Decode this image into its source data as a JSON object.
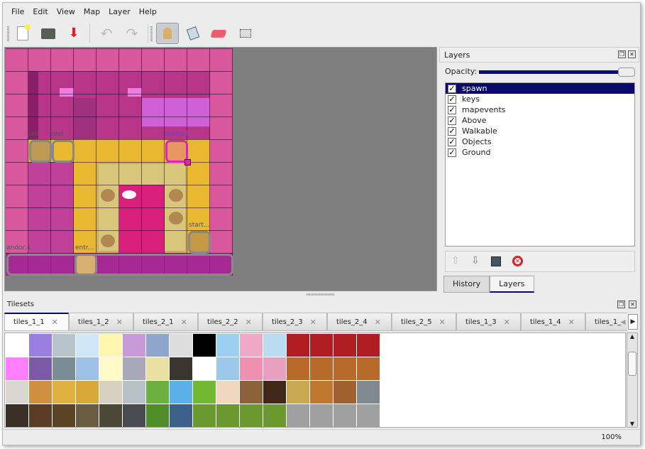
{
  "menu": [
    "File",
    "Edit",
    "View",
    "Map",
    "Layer",
    "Help"
  ],
  "toolbar": {
    "buttons": [
      {
        "icon": "new-file-icon",
        "label": "New"
      },
      {
        "icon": "open-folder-icon",
        "label": "Open"
      },
      {
        "icon": "save-icon",
        "label": "Save"
      },
      {
        "icon": "undo-icon",
        "label": "Undo"
      },
      {
        "icon": "redo-icon",
        "label": "Redo"
      },
      {
        "icon": "stamp-brush-icon",
        "label": "Stamp Brush",
        "active": true
      },
      {
        "icon": "bucket-fill-icon",
        "label": "Bucket Fill"
      },
      {
        "icon": "eraser-icon",
        "label": "Eraser"
      },
      {
        "icon": "rect-select-icon",
        "label": "Rectangular Select"
      }
    ]
  },
  "map": {
    "objects": [
      {
        "name": "bed"
      },
      {
        "name": "rest"
      },
      {
        "name": "mikhail"
      },
      {
        "name": "start..."
      },
      {
        "name": "andor:1"
      },
      {
        "name": "entr..."
      }
    ]
  },
  "layers_panel": {
    "title": "Layers",
    "opacity_label": "Opacity:",
    "opacity": 100,
    "layers": [
      {
        "name": "spawn",
        "visible": true,
        "selected": true
      },
      {
        "name": "keys",
        "visible": true
      },
      {
        "name": "mapevents",
        "visible": true
      },
      {
        "name": "Above",
        "visible": true
      },
      {
        "name": "Walkable",
        "visible": true
      },
      {
        "name": "Objects",
        "visible": true
      },
      {
        "name": "Ground",
        "visible": true
      }
    ],
    "tabs": [
      "History",
      "Layers"
    ],
    "active_tab": "Layers"
  },
  "tilesets_panel": {
    "title": "Tilesets",
    "tabs": [
      "tiles_1_1",
      "tiles_1_2",
      "tiles_2_1",
      "tiles_2_2",
      "tiles_2_3",
      "tiles_2_4",
      "tiles_2_5",
      "tiles_1_3",
      "tiles_1_4",
      "tiles_1_"
    ],
    "active_tab": "tiles_1_1",
    "tile_colors": [
      "#ffffff",
      "#9a7fe0",
      "#b8c4cc",
      "#cfe6f7",
      "#fff6b0",
      "#c89ad8",
      "#8fa6cc",
      "#dddddd",
      "#000000",
      "#9cd0f0",
      "#f0a8c8",
      "#b8dcf0",
      "#b01e24",
      "#b01e24",
      "#b01e24",
      "#b01e24",
      "#ff7fff",
      "#7a5aa8",
      "#7a8c96",
      "#9cc0e8",
      "#fffac8",
      "#a8a8b8",
      "#e8e0a0",
      "#3a3530",
      "#ffffff",
      "#9cc8ec",
      "#f090b0",
      "#e8a0c0",
      "#b86a28",
      "#b86a28",
      "#b86a28",
      "#b86a28",
      "#d8d8d0",
      "#d09040",
      "#e0b040",
      "#d8a838",
      "#d8d0c0",
      "#b8c0c8",
      "#6cb040",
      "#5cb0e8",
      "#70b830",
      "#f0d8c0",
      "#8c6038",
      "#402818",
      "#c8a850",
      "#c07830",
      "#a06030",
      "#808890",
      "#3a3028",
      "#5a3c24",
      "#5a4424",
      "#6a5c40",
      "#4c4838",
      "#484c50",
      "#508c28",
      "#3c6088",
      "#6c9830",
      "#6c9830",
      "#6c9830",
      "#6c9830",
      "#a0a0a0",
      "#a0a0a0",
      "#a0a0a0",
      "#a0a0a0"
    ]
  },
  "status": {
    "zoom": "100%"
  }
}
